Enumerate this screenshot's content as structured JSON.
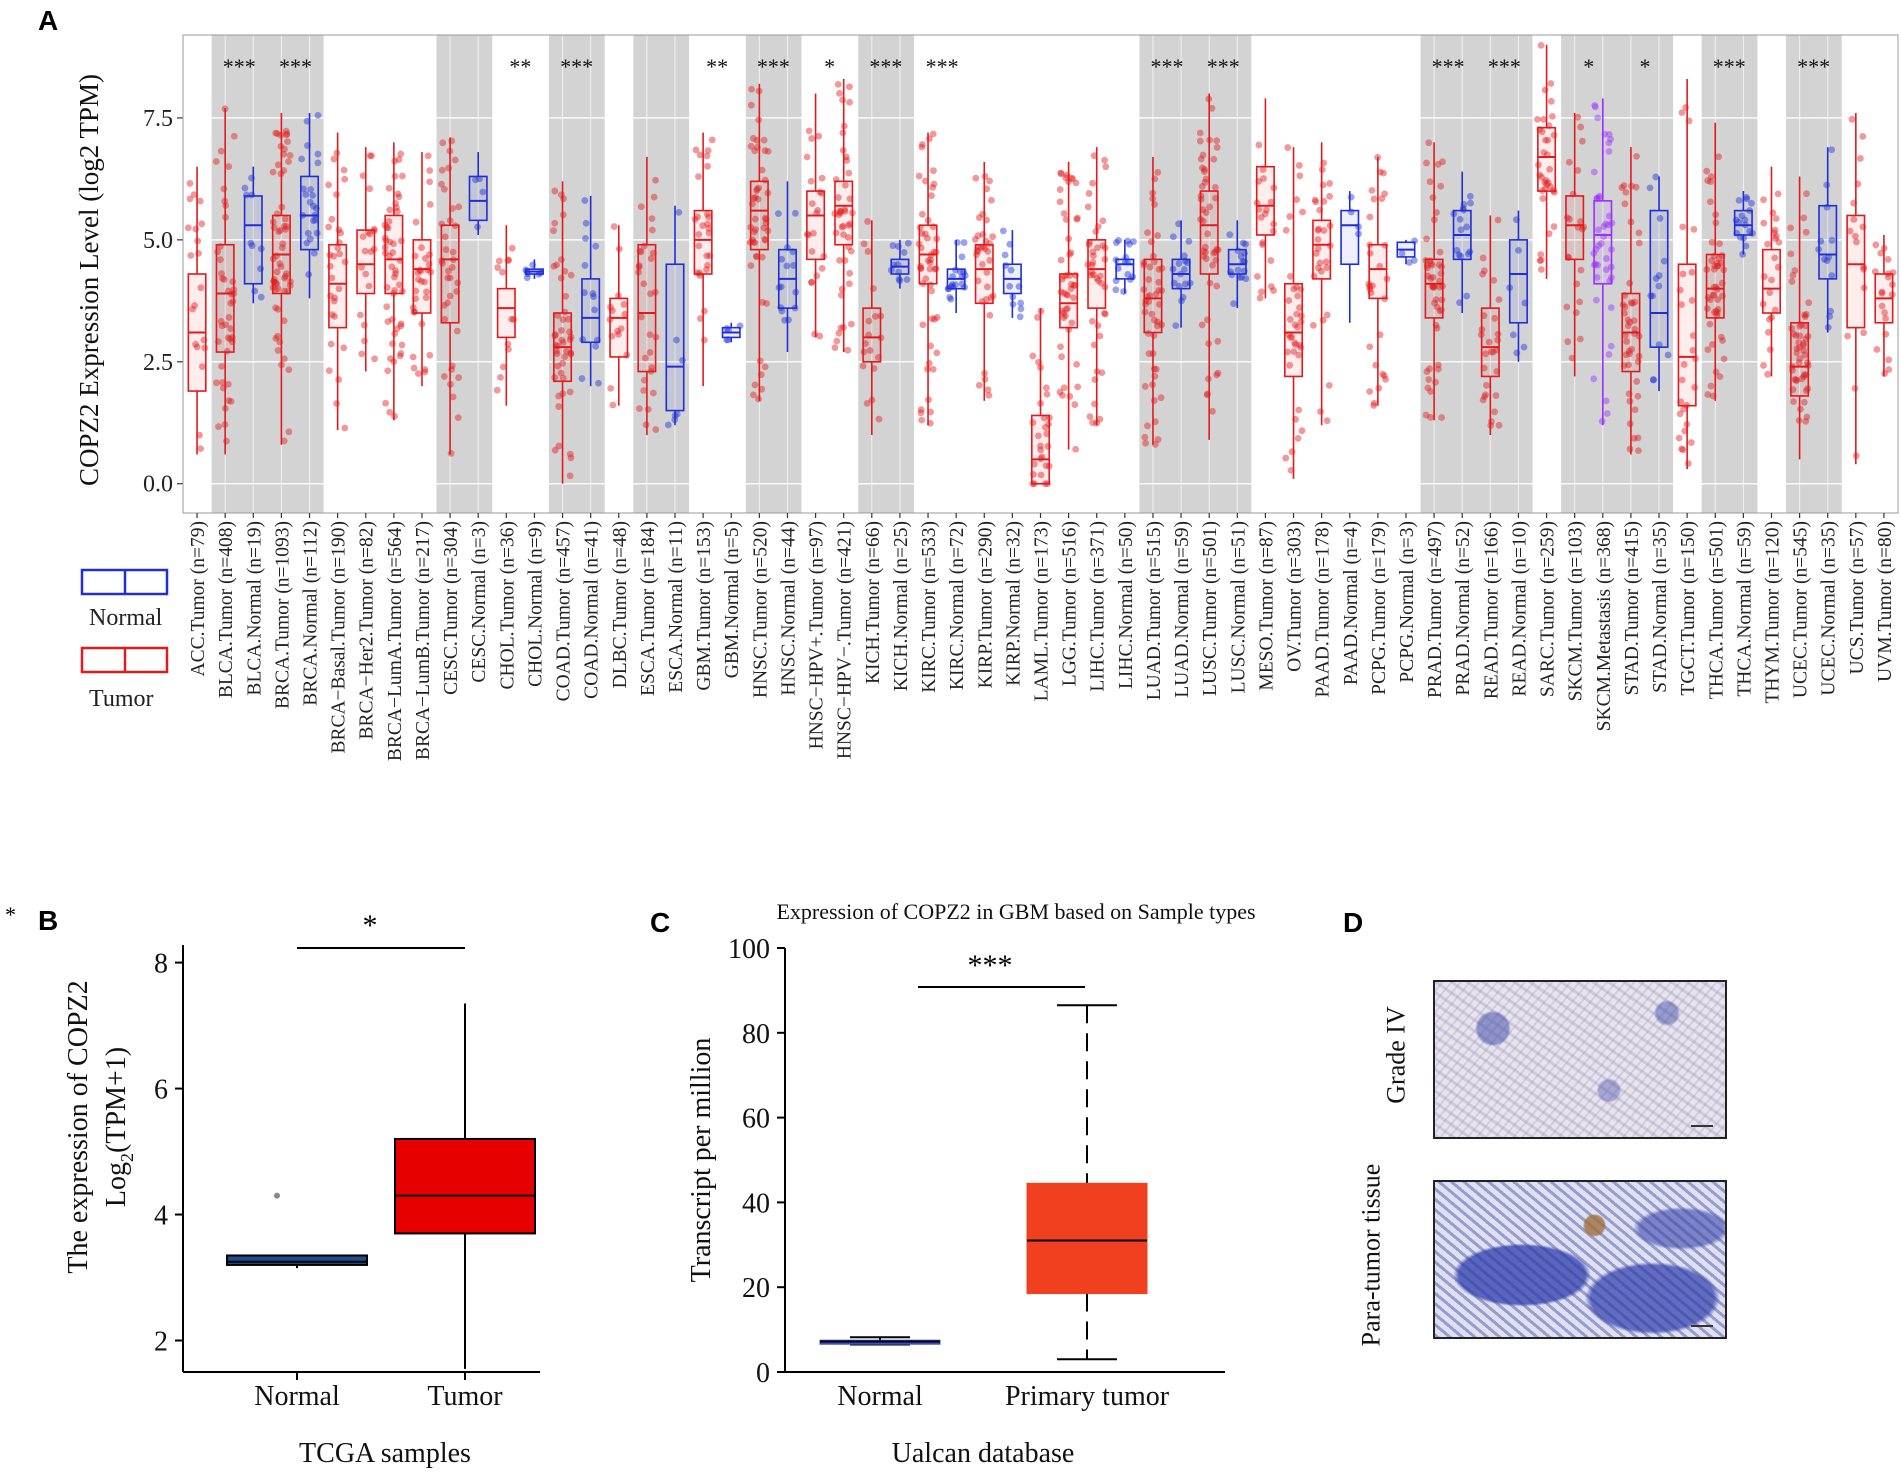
{
  "stray_mark": "*",
  "panel_letters": {
    "a": "A",
    "b": "B",
    "c": "C",
    "d": "D"
  },
  "legend": {
    "normal": "Normal",
    "tumor": "Tumor"
  },
  "colors": {
    "tumor": "#e31a1c",
    "normal": "#1f2fd6",
    "metastasis": "#9b30ff",
    "panel_b_normal": "#1f4e8c",
    "panel_b_tumor": "#e60000",
    "panel_c_tumor": "#f04020",
    "panel_c_normal": "#3b4cc0",
    "shade": "#d3d3d3"
  },
  "chart_data": [
    {
      "id": "A",
      "type": "box",
      "title": "",
      "ylabel": "COPZ2 Expression Level (log2 TPM)",
      "ylim": [
        -0.6,
        9.2
      ],
      "yticks": [
        "0.0",
        "2.5",
        "5.0",
        "7.5"
      ],
      "categories": [
        {
          "label": "ACC.Tumor (n=79)",
          "group": "tumor",
          "stats": [
            0.6,
            1.9,
            3.1,
            4.3,
            6.5
          ],
          "shade": false
        },
        {
          "label": "BLCA.Tumor (n=408)",
          "group": "tumor",
          "stats": [
            0.6,
            2.7,
            3.9,
            4.9,
            7.7
          ],
          "shade": true,
          "sig": "***"
        },
        {
          "label": "BLCA.Normal (n=19)",
          "group": "normal",
          "stats": [
            3.7,
            4.1,
            5.3,
            5.9,
            6.5
          ],
          "shade": true
        },
        {
          "label": "BRCA.Tumor (n=1093)",
          "group": "tumor",
          "stats": [
            0.8,
            3.9,
            4.7,
            5.5,
            7.6
          ],
          "shade": true,
          "sig": "***"
        },
        {
          "label": "BRCA.Normal (n=112)",
          "group": "normal",
          "stats": [
            3.8,
            4.8,
            5.5,
            6.3,
            7.6
          ],
          "shade": true
        },
        {
          "label": "BRCA−Basal.Tumor (n=190)",
          "group": "tumor",
          "stats": [
            1.1,
            3.2,
            4.1,
            4.9,
            7.2
          ],
          "shade": false
        },
        {
          "label": "BRCA−Her2.Tumor (n=82)",
          "group": "tumor",
          "stats": [
            2.3,
            3.9,
            4.5,
            5.2,
            6.9
          ],
          "shade": false
        },
        {
          "label": "BRCA−LumA.Tumor (n=564)",
          "group": "tumor",
          "stats": [
            1.3,
            3.9,
            4.6,
            5.5,
            7.0
          ],
          "shade": false
        },
        {
          "label": "BRCA−LumB.Tumor (n=217)",
          "group": "tumor",
          "stats": [
            2.0,
            3.5,
            4.4,
            5.0,
            6.8
          ],
          "shade": false
        },
        {
          "label": "CESC.Tumor (n=304)",
          "group": "tumor",
          "stats": [
            0.6,
            3.3,
            4.6,
            5.3,
            7.1
          ],
          "shade": true
        },
        {
          "label": "CESC.Normal (n=3)",
          "group": "normal",
          "stats": [
            5.1,
            5.4,
            5.8,
            6.3,
            6.8
          ],
          "shade": true
        },
        {
          "label": "CHOL.Tumor (n=36)",
          "group": "tumor",
          "stats": [
            1.6,
            3.0,
            3.6,
            4.0,
            5.3
          ],
          "shade": false,
          "sig": "**"
        },
        {
          "label": "CHOL.Normal (n=9)",
          "group": "normal",
          "stats": [
            4.2,
            4.3,
            4.35,
            4.4,
            4.6
          ],
          "shade": false
        },
        {
          "label": "COAD.Tumor (n=457)",
          "group": "tumor",
          "stats": [
            0.0,
            2.1,
            2.8,
            3.5,
            6.2
          ],
          "shade": true,
          "sig": "***"
        },
        {
          "label": "COAD.Normal (n=41)",
          "group": "normal",
          "stats": [
            2.0,
            2.9,
            3.4,
            4.2,
            5.9
          ],
          "shade": true
        },
        {
          "label": "DLBC.Tumor (n=48)",
          "group": "tumor",
          "stats": [
            1.6,
            2.6,
            3.4,
            3.8,
            5.3
          ],
          "shade": false
        },
        {
          "label": "ESCA.Tumor (n=184)",
          "group": "tumor",
          "stats": [
            1.0,
            2.3,
            3.5,
            4.9,
            6.7
          ],
          "shade": true
        },
        {
          "label": "ESCA.Normal (n=11)",
          "group": "normal",
          "stats": [
            1.2,
            1.5,
            2.4,
            4.5,
            5.7
          ],
          "shade": true
        },
        {
          "label": "GBM.Tumor (n=153)",
          "group": "tumor",
          "stats": [
            2.0,
            4.3,
            5.0,
            5.6,
            7.2
          ],
          "shade": false,
          "sig": "**"
        },
        {
          "label": "GBM.Normal (n=5)",
          "group": "normal",
          "stats": [
            2.9,
            3.0,
            3.1,
            3.2,
            3.3
          ],
          "shade": false
        },
        {
          "label": "HNSC.Tumor (n=520)",
          "group": "tumor",
          "stats": [
            1.7,
            4.8,
            5.6,
            6.2,
            8.2
          ],
          "shade": true,
          "sig": "***"
        },
        {
          "label": "HNSC.Normal (n=44)",
          "group": "normal",
          "stats": [
            2.7,
            3.6,
            4.2,
            4.8,
            6.2
          ],
          "shade": true
        },
        {
          "label": "HNSC−HPV+.Tumor (n=97)",
          "group": "tumor",
          "stats": [
            3.0,
            4.6,
            5.5,
            6.0,
            8.0
          ],
          "shade": false,
          "sig": "*"
        },
        {
          "label": "HNSC−HPV−.Tumor (n=421)",
          "group": "tumor",
          "stats": [
            2.7,
            4.9,
            5.7,
            6.2,
            8.3
          ],
          "shade": false
        },
        {
          "label": "KICH.Tumor (n=66)",
          "group": "tumor",
          "stats": [
            1.0,
            2.5,
            3.0,
            3.6,
            5.4
          ],
          "shade": true,
          "sig": "***"
        },
        {
          "label": "KICH.Normal (n=25)",
          "group": "normal",
          "stats": [
            4.0,
            4.3,
            4.45,
            4.6,
            5.0
          ],
          "shade": true
        },
        {
          "label": "KIRC.Tumor (n=533)",
          "group": "tumor",
          "stats": [
            1.2,
            4.1,
            4.7,
            5.3,
            7.2
          ],
          "shade": false,
          "sig": "***"
        },
        {
          "label": "KIRC.Normal (n=72)",
          "group": "normal",
          "stats": [
            3.5,
            4.0,
            4.2,
            4.4,
            5.0
          ],
          "shade": false
        },
        {
          "label": "KIRP.Tumor (n=290)",
          "group": "tumor",
          "stats": [
            1.7,
            3.7,
            4.4,
            4.9,
            6.6
          ],
          "shade": false
        },
        {
          "label": "KIRP.Normal (n=32)",
          "group": "normal",
          "stats": [
            3.4,
            3.9,
            4.2,
            4.5,
            5.2
          ],
          "shade": false
        },
        {
          "label": "LAML.Tumor (n=173)",
          "group": "tumor",
          "stats": [
            0.0,
            0.0,
            0.5,
            1.4,
            3.6
          ],
          "shade": false
        },
        {
          "label": "LGG.Tumor (n=516)",
          "group": "tumor",
          "stats": [
            0.7,
            3.2,
            3.7,
            4.3,
            6.6
          ],
          "shade": false
        },
        {
          "label": "LIHC.Tumor (n=371)",
          "group": "tumor",
          "stats": [
            1.2,
            3.6,
            4.4,
            5.0,
            6.9
          ],
          "shade": false
        },
        {
          "label": "LIHC.Normal (n=50)",
          "group": "normal",
          "stats": [
            3.9,
            4.2,
            4.5,
            4.6,
            5.0
          ],
          "shade": false
        },
        {
          "label": "LUAD.Tumor (n=515)",
          "group": "tumor",
          "stats": [
            0.8,
            3.1,
            3.8,
            4.6,
            6.7
          ],
          "shade": true,
          "sig": "***"
        },
        {
          "label": "LUAD.Normal (n=59)",
          "group": "normal",
          "stats": [
            3.2,
            4.0,
            4.3,
            4.6,
            5.4
          ],
          "shade": true
        },
        {
          "label": "LUSC.Tumor (n=501)",
          "group": "tumor",
          "stats": [
            0.9,
            4.3,
            5.3,
            6.0,
            8.0
          ],
          "shade": true,
          "sig": "***"
        },
        {
          "label": "LUSC.Normal (n=51)",
          "group": "normal",
          "stats": [
            3.6,
            4.3,
            4.5,
            4.8,
            5.4
          ],
          "shade": true
        },
        {
          "label": "MESO.Tumor (n=87)",
          "group": "tumor",
          "stats": [
            3.8,
            5.1,
            5.7,
            6.5,
            7.9
          ],
          "shade": false
        },
        {
          "label": "OV.Tumor (n=303)",
          "group": "tumor",
          "stats": [
            0.1,
            2.2,
            3.1,
            4.1,
            6.9
          ],
          "shade": false
        },
        {
          "label": "PAAD.Tumor (n=178)",
          "group": "tumor",
          "stats": [
            1.2,
            4.2,
            4.9,
            5.4,
            7.0
          ],
          "shade": false
        },
        {
          "label": "PAAD.Normal (n=4)",
          "group": "normal",
          "stats": [
            3.3,
            4.5,
            5.3,
            5.6,
            6.0
          ],
          "shade": false
        },
        {
          "label": "PCPG.Tumor (n=179)",
          "group": "tumor",
          "stats": [
            1.6,
            3.8,
            4.4,
            4.9,
            6.7
          ],
          "shade": false
        },
        {
          "label": "PCPG.Normal (n=3)",
          "group": "normal",
          "stats": [
            4.5,
            4.65,
            4.8,
            4.95,
            5.0
          ],
          "shade": false
        },
        {
          "label": "PRAD.Tumor (n=497)",
          "group": "tumor",
          "stats": [
            1.3,
            3.4,
            4.1,
            4.6,
            7.0
          ],
          "shade": true,
          "sig": "***"
        },
        {
          "label": "PRAD.Normal (n=52)",
          "group": "normal",
          "stats": [
            3.5,
            4.6,
            5.1,
            5.6,
            6.4
          ],
          "shade": true
        },
        {
          "label": "READ.Tumor (n=166)",
          "group": "tumor",
          "stats": [
            1.0,
            2.2,
            2.8,
            3.6,
            5.5
          ],
          "shade": true,
          "sig": "***"
        },
        {
          "label": "READ.Normal (n=10)",
          "group": "normal",
          "stats": [
            2.5,
            3.3,
            4.3,
            5.0,
            5.6
          ],
          "shade": true
        },
        {
          "label": "SARC.Tumor (n=259)",
          "group": "tumor",
          "stats": [
            4.2,
            6.0,
            6.7,
            7.3,
            9.0
          ],
          "shade": false
        },
        {
          "label": "SKCM.Tumor (n=103)",
          "group": "tumor",
          "stats": [
            2.2,
            4.6,
            5.3,
            5.9,
            7.6
          ],
          "shade": true,
          "sig": "*"
        },
        {
          "label": "SKCM.Metastasis (n=368)",
          "group": "metastasis",
          "stats": [
            1.2,
            4.1,
            5.1,
            5.8,
            7.9
          ],
          "shade": true
        },
        {
          "label": "STAD.Tumor (n=415)",
          "group": "tumor",
          "stats": [
            0.6,
            2.3,
            3.1,
            3.9,
            6.9
          ],
          "shade": true,
          "sig": "*"
        },
        {
          "label": "STAD.Normal (n=35)",
          "group": "normal",
          "stats": [
            1.9,
            2.8,
            3.5,
            5.6,
            6.3
          ],
          "shade": true
        },
        {
          "label": "TGCT.Tumor (n=150)",
          "group": "tumor",
          "stats": [
            0.3,
            1.6,
            2.6,
            4.5,
            8.3
          ],
          "shade": false
        },
        {
          "label": "THCA.Tumor (n=501)",
          "group": "tumor",
          "stats": [
            1.7,
            3.4,
            4.0,
            4.7,
            7.4
          ],
          "shade": true,
          "sig": "***"
        },
        {
          "label": "THCA.Normal (n=59)",
          "group": "normal",
          "stats": [
            4.7,
            5.1,
            5.3,
            5.6,
            6.0
          ],
          "shade": true
        },
        {
          "label": "THYM.Tumor (n=120)",
          "group": "tumor",
          "stats": [
            2.2,
            3.5,
            4.0,
            4.8,
            6.5
          ],
          "shade": false
        },
        {
          "label": "UCEC.Tumor (n=545)",
          "group": "tumor",
          "stats": [
            0.5,
            1.8,
            2.4,
            3.3,
            6.3
          ],
          "shade": true,
          "sig": "***"
        },
        {
          "label": "UCEC.Normal (n=35)",
          "group": "normal",
          "stats": [
            3.1,
            4.2,
            4.7,
            5.7,
            6.9
          ],
          "shade": true
        },
        {
          "label": "UCS.Tumor (n=57)",
          "group": "tumor",
          "stats": [
            0.4,
            3.2,
            4.5,
            5.5,
            7.6
          ],
          "shade": false
        },
        {
          "label": "UVM.Tumor (n=80)",
          "group": "tumor",
          "stats": [
            2.2,
            3.3,
            3.8,
            4.3,
            5.1
          ],
          "shade": false
        }
      ]
    },
    {
      "id": "B",
      "type": "box",
      "ylabel": "The expression of COPZ2",
      "ylabel2_prefix": "Log",
      "ylabel2_sub": "2",
      "ylabel2_suffix": "(TPM+1)",
      "xlabel": "TCGA samples",
      "ylim": [
        1.5,
        8.2
      ],
      "yticks": [
        "2",
        "4",
        "6",
        "8"
      ],
      "significance": "*",
      "categories": [
        "Normal",
        "Tumor"
      ],
      "series": [
        {
          "name": "Normal",
          "min": 3.15,
          "q1": 3.2,
          "median": 3.25,
          "q3": 3.35,
          "max": 3.35,
          "outliers": [
            4.3
          ]
        },
        {
          "name": "Tumor",
          "min": 1.55,
          "q1": 3.7,
          "median": 4.3,
          "q3": 5.2,
          "max": 7.35,
          "outliers": []
        }
      ]
    },
    {
      "id": "C",
      "type": "box",
      "title": "Expression of COPZ2 in GBM based on Sample types",
      "ylabel": "Transcript per million",
      "xlabel": "Ualcan database",
      "ylim": [
        0,
        100
      ],
      "yticks": [
        "0",
        "20",
        "40",
        "60",
        "80",
        "100"
      ],
      "significance": "***",
      "categories": [
        "Normal",
        "Primary tumor"
      ],
      "series": [
        {
          "name": "Normal",
          "min": 6.5,
          "q1": 6.9,
          "median": 7.2,
          "q3": 7.5,
          "max": 8.2
        },
        {
          "name": "Primary tumor",
          "min": 3.0,
          "q1": 18.5,
          "median": 31.0,
          "q3": 44.5,
          "max": 86.5
        }
      ]
    }
  ],
  "panel_d": {
    "top_label": "Grade IV",
    "bottom_label": "Para-tumor tissue"
  }
}
